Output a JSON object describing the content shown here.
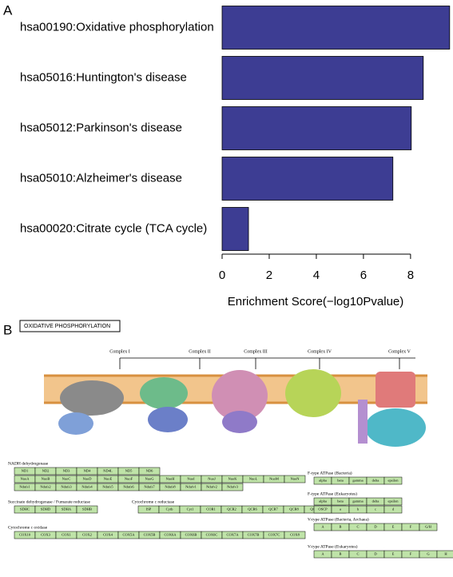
{
  "panels": {
    "a": "A",
    "b": "B"
  },
  "chart_data": {
    "type": "barh",
    "categories": [
      "hsa00190:Oxidative phosphorylation",
      "hsa05016:Huntington's disease",
      "hsa05012:Parkinson's disease",
      "hsa05010:Alzheimer's disease",
      "hsa00020:Citrate cycle (TCA cycle)"
    ],
    "values": [
      9.66,
      8.54,
      8.03,
      7.25,
      1.12
    ],
    "color": "#3d3d93",
    "x_label": "Enrichment Score(−log10Pvalue)",
    "xlim": [
      0,
      9.7
    ],
    "xticks": [
      0,
      2,
      4,
      6,
      8
    ]
  },
  "diagram": {
    "title": "OXIDATIVE PHOSPHORYLATION",
    "complexes": [
      "Complex I",
      "Complex II",
      "Complex III",
      "Complex IV",
      "Complex V"
    ],
    "sections": [
      {
        "title": "NADH dehydrogenase",
        "rows": [
          [
            "ND1",
            "ND2",
            "ND3",
            "ND4",
            "ND4L",
            "ND5",
            "ND6"
          ],
          [
            "NuoA",
            "NuoB",
            "NuoC",
            "NuoD",
            "NuoE",
            "NuoF",
            "NuoG",
            "NuoH",
            "NuoI",
            "NuoJ",
            "NuoK",
            "NuoL",
            "NuoM",
            "NuoN"
          ],
          [
            "Ndufs1",
            "Ndufs2",
            "Ndufs3",
            "Ndufs4",
            "Ndufs5",
            "Ndufs6",
            "Ndufs7",
            "Ndufs8",
            "Ndufv1",
            "Ndufv2",
            "Ndufv3"
          ]
        ]
      },
      {
        "title": "Succinate dehydrogenase / Fumarate reductase",
        "rows": [
          [
            "SDHC",
            "SDHD",
            "SDHA",
            "SDHB"
          ]
        ]
      },
      {
        "title": "Cytochrome c reductase",
        "rows": [
          [
            "ISP",
            "Cytb",
            "Cyt1",
            "COR1",
            "QCR2",
            "QCR6",
            "QCR7",
            "QCR8",
            "QCR9",
            "QCR10"
          ]
        ]
      },
      {
        "title": "Cytochrome c oxidase",
        "rows": [
          [
            "COX10",
            "COX3",
            "COX1",
            "COX2",
            "COX4",
            "COX5A",
            "COX5B",
            "COX6A",
            "COX6B",
            "COX6C",
            "COX7A",
            "COX7B",
            "COX7C",
            "COX8"
          ]
        ]
      },
      {
        "title": "F-type ATPase (Bacteria)",
        "rows": [
          [
            "alpha",
            "beta",
            "gamma",
            "delta",
            "epsilon"
          ]
        ]
      },
      {
        "title": "F-type ATPase (Eukaryotes)",
        "rows": [
          [
            "alpha",
            "beta",
            "gamma",
            "delta",
            "epsilon"
          ],
          [
            "OSCP",
            "a",
            "b",
            "c",
            "d"
          ]
        ]
      },
      {
        "title": "V-type ATPase (Bacteria, Archaea)",
        "rows": [
          [
            "A",
            "B",
            "C",
            "D",
            "E",
            "F",
            "G/H"
          ]
        ]
      },
      {
        "title": "V-type ATPase (Eukaryotes)",
        "rows": [
          [
            "A",
            "B",
            "C",
            "D",
            "E",
            "F",
            "G",
            "H"
          ]
        ]
      }
    ]
  }
}
